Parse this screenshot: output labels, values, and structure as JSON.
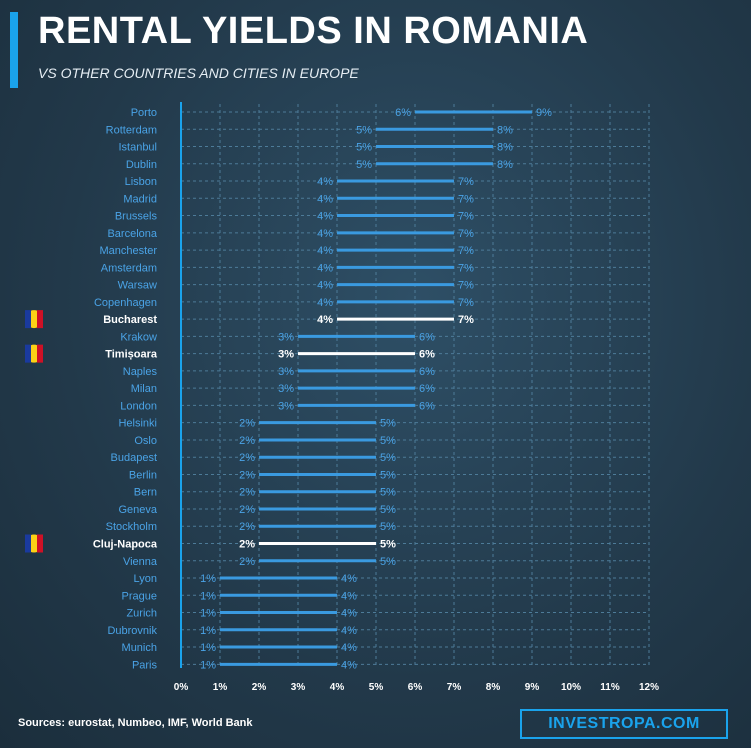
{
  "header": {
    "title": "RENTAL YIELDS IN ROMANIA",
    "subtitle": "VS OTHER COUNTRIES AND CITIES IN EUROPE"
  },
  "footer": {
    "source": "Sources: eurostat, Numbeo, IMF, World Bank",
    "brand": "INVESTROPA.COM"
  },
  "colors": {
    "accent": "#1aa3ec",
    "range_line": "#3a9ae0",
    "label_blue": "#4aa3e6",
    "highlight": "#ffffff",
    "grid": "#4d7b98"
  },
  "chart_data": {
    "type": "range",
    "title": "RENTAL YIELDS IN ROMANIA",
    "xlim": [
      0,
      12
    ],
    "ticks": [
      "0%",
      "1%",
      "2%",
      "3%",
      "4%",
      "5%",
      "6%",
      "7%",
      "8%",
      "9%",
      "10%",
      "11%",
      "12%"
    ],
    "grid": true,
    "series": [
      {
        "city": "Porto",
        "min": 6,
        "max": 9,
        "min_label": "6%",
        "max_label": "9%",
        "highlight": false
      },
      {
        "city": "Rotterdam",
        "min": 5,
        "max": 8,
        "min_label": "5%",
        "max_label": "8%",
        "highlight": false
      },
      {
        "city": "Istanbul",
        "min": 5,
        "max": 8,
        "min_label": "5%",
        "max_label": "8%",
        "highlight": false
      },
      {
        "city": "Dublin",
        "min": 5,
        "max": 8,
        "min_label": "5%",
        "max_label": "8%",
        "highlight": false
      },
      {
        "city": "Lisbon",
        "min": 4,
        "max": 7,
        "min_label": "4%",
        "max_label": "7%",
        "highlight": false
      },
      {
        "city": "Madrid",
        "min": 4,
        "max": 7,
        "min_label": "4%",
        "max_label": "7%",
        "highlight": false
      },
      {
        "city": "Brussels",
        "min": 4,
        "max": 7,
        "min_label": "4%",
        "max_label": "7%",
        "highlight": false
      },
      {
        "city": "Barcelona",
        "min": 4,
        "max": 7,
        "min_label": "4%",
        "max_label": "7%",
        "highlight": false
      },
      {
        "city": "Manchester",
        "min": 4,
        "max": 7,
        "min_label": "4%",
        "max_label": "7%",
        "highlight": false
      },
      {
        "city": "Amsterdam",
        "min": 4,
        "max": 7,
        "min_label": "4%",
        "max_label": "7%",
        "highlight": false
      },
      {
        "city": "Warsaw",
        "min": 4,
        "max": 7,
        "min_label": "4%",
        "max_label": "7%",
        "highlight": false
      },
      {
        "city": "Copenhagen",
        "min": 4,
        "max": 7,
        "min_label": "4%",
        "max_label": "7%",
        "highlight": false
      },
      {
        "city": "Bucharest",
        "min": 4,
        "max": 7,
        "min_label": "4%",
        "max_label": "7%",
        "highlight": true
      },
      {
        "city": "Krakow",
        "min": 3,
        "max": 6,
        "min_label": "3%",
        "max_label": "6%",
        "highlight": false
      },
      {
        "city": "Timișoara",
        "min": 3,
        "max": 6,
        "min_label": "3%",
        "max_label": "6%",
        "highlight": true
      },
      {
        "city": "Naples",
        "min": 3,
        "max": 6,
        "min_label": "3%",
        "max_label": "6%",
        "highlight": false
      },
      {
        "city": "Milan",
        "min": 3,
        "max": 6,
        "min_label": "3%",
        "max_label": "6%",
        "highlight": false
      },
      {
        "city": "London",
        "min": 3,
        "max": 6,
        "min_label": "3%",
        "max_label": "6%",
        "highlight": false
      },
      {
        "city": "Helsinki",
        "min": 2,
        "max": 5,
        "min_label": "2%",
        "max_label": "5%",
        "highlight": false
      },
      {
        "city": "Oslo",
        "min": 2,
        "max": 5,
        "min_label": "2%",
        "max_label": "5%",
        "highlight": false
      },
      {
        "city": "Budapest",
        "min": 2,
        "max": 5,
        "min_label": "2%",
        "max_label": "5%",
        "highlight": false
      },
      {
        "city": "Berlin",
        "min": 2,
        "max": 5,
        "min_label": "2%",
        "max_label": "5%",
        "highlight": false
      },
      {
        "city": "Bern",
        "min": 2,
        "max": 5,
        "min_label": "2%",
        "max_label": "5%",
        "highlight": false
      },
      {
        "city": "Geneva",
        "min": 2,
        "max": 5,
        "min_label": "2%",
        "max_label": "5%",
        "highlight": false
      },
      {
        "city": "Stockholm",
        "min": 2,
        "max": 5,
        "min_label": "2%",
        "max_label": "5%",
        "highlight": false
      },
      {
        "city": "Cluj-Napoca",
        "min": 2,
        "max": 5,
        "min_label": "2%",
        "max_label": "5%",
        "highlight": true
      },
      {
        "city": "Vienna",
        "min": 2,
        "max": 5,
        "min_label": "2%",
        "max_label": "5%",
        "highlight": false
      },
      {
        "city": "Lyon",
        "min": 1,
        "max": 4,
        "min_label": "1%",
        "max_label": "4%",
        "highlight": false
      },
      {
        "city": "Prague",
        "min": 1,
        "max": 4,
        "min_label": "1%",
        "max_label": "4%",
        "highlight": false
      },
      {
        "city": "Zurich",
        "min": 1,
        "max": 4,
        "min_label": "1%",
        "max_label": "4%",
        "highlight": false
      },
      {
        "city": "Dubrovnik",
        "min": 1,
        "max": 4,
        "min_label": "1%",
        "max_label": "4%",
        "highlight": false
      },
      {
        "city": "Munich",
        "min": 1,
        "max": 4,
        "min_label": "1%",
        "max_label": "4%",
        "highlight": false
      },
      {
        "city": "Paris",
        "min": 1,
        "max": 4,
        "min_label": "1%",
        "max_label": "4%",
        "highlight": false
      }
    ]
  }
}
